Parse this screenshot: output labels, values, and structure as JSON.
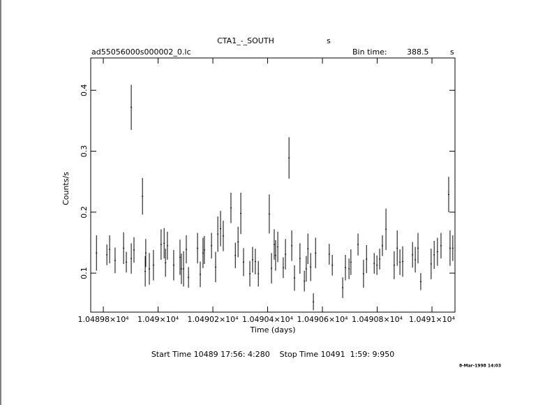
{
  "chart_data": {
    "type": "errorbar",
    "title": "CTA1_-_SOUTH",
    "title_unit": "s",
    "file_name": "ad55056000s000002_0.lc",
    "bin_time_label": "Bin time:",
    "bin_time": 388.5,
    "bin_time_unit": "s",
    "ylabel": "Counts/s",
    "xlabel": "Time (days)",
    "time_range": "Start Time 10489 17:56: 4:280    Stop Time 10491  1:59: 9:950",
    "date": "8-Mar-1998 14:03",
    "color": "#000000",
    "x": [
      10489.775,
      10489.813,
      10489.823,
      10489.843,
      10489.874,
      10489.884,
      10489.902,
      10489.902,
      10489.912,
      10489.943,
      10489.953,
      10489.955,
      10489.968,
      10489.983,
      10490.011,
      10490.022,
      10490.027,
      10490.034,
      10490.057,
      10490.08,
      10490.085,
      10490.093,
      10490.103,
      10490.111,
      10490.144,
      10490.154,
      10490.164,
      10490.169,
      10490.195,
      10490.21,
      10490.218,
      10490.228,
      10490.238,
      10490.266,
      10490.282,
      10490.292,
      10490.302,
      10490.312,
      10490.335,
      10490.345,
      10490.355,
      10490.366,
      10490.406,
      10490.414,
      10490.424,
      10490.429,
      10490.437,
      10490.457,
      10490.465,
      10490.478,
      10490.488,
      10490.498,
      10490.518,
      10490.534,
      10490.541,
      10490.547,
      10490.557,
      10490.567,
      10490.575,
      10490.625,
      10490.636,
      10490.674,
      10490.684,
      10490.697,
      10490.704,
      10490.73,
      10490.75,
      10490.761,
      10490.789,
      10490.799,
      10490.809,
      10490.819,
      10490.832,
      10490.862,
      10490.873,
      10490.883,
      10490.893,
      10490.929,
      10490.939,
      10490.949,
      10490.959,
      10490.997,
      10491.008,
      10491.02,
      10491.033,
      10491.061,
      10491.066,
      10491.076
    ],
    "values": [
      0.133,
      0.13,
      0.139,
      0.121,
      0.141,
      0.118,
      0.372,
      0.124,
      0.138,
      0.226,
      0.103,
      0.133,
      0.107,
      0.113,
      0.147,
      0.149,
      0.117,
      0.145,
      0.113,
      0.126,
      0.107,
      0.107,
      0.139,
      0.093,
      0.141,
      0.098,
      0.133,
      0.138,
      0.145,
      0.11,
      0.164,
      0.173,
      0.161,
      0.207,
      0.129,
      0.151,
      0.198,
      0.118,
      0.099,
      0.122,
      0.119,
      0.099,
      0.197,
      0.108,
      0.147,
      0.129,
      0.143,
      0.109,
      0.131,
      0.289,
      0.145,
      0.092,
      0.124,
      0.087,
      0.107,
      0.14,
      0.11,
      0.053,
      0.133,
      0.131,
      0.113,
      0.076,
      0.109,
      0.107,
      0.118,
      0.147,
      0.099,
      0.123,
      0.116,
      0.113,
      0.123,
      0.145,
      0.172,
      0.113,
      0.141,
      0.118,
      0.119,
      0.13,
      0.122,
      0.141,
      0.086,
      0.115,
      0.13,
      0.135,
      0.145,
      0.229,
      0.141,
      0.141
    ],
    "errors": [
      0.029,
      0.017,
      0.023,
      0.021,
      0.026,
      0.017,
      0.037,
      0.025,
      0.021,
      0.03,
      0.025,
      0.023,
      0.026,
      0.025,
      0.025,
      0.025,
      0.023,
      0.023,
      0.025,
      0.029,
      0.025,
      0.029,
      0.023,
      0.017,
      0.025,
      0.021,
      0.025,
      0.023,
      0.021,
      0.025,
      0.029,
      0.029,
      0.025,
      0.025,
      0.021,
      0.025,
      0.034,
      0.023,
      0.021,
      0.021,
      0.021,
      0.021,
      0.032,
      0.025,
      0.025,
      0.025,
      0.025,
      0.017,
      0.025,
      0.034,
      0.025,
      0.021,
      0.025,
      0.017,
      0.021,
      0.025,
      0.023,
      0.014,
      0.025,
      0.017,
      0.017,
      0.017,
      0.021,
      0.017,
      0.021,
      0.018,
      0.023,
      0.023,
      0.017,
      0.016,
      0.017,
      0.017,
      0.034,
      0.023,
      0.029,
      0.021,
      0.025,
      0.021,
      0.021,
      0.025,
      0.014,
      0.025,
      0.023,
      0.023,
      0.021,
      0.029,
      0.029,
      0.021
    ],
    "xlim": [
      10489.754,
      10491.084
    ],
    "ylim": [
      0.036,
      0.453
    ],
    "xticks": [
      {
        "value": 10489.8,
        "label": "1.04898×10⁴"
      },
      {
        "value": 10490.0,
        "label": "1.049×10⁴"
      },
      {
        "value": 10490.2,
        "label": "1.04902×10⁴"
      },
      {
        "value": 10490.4,
        "label": "1.04904×10⁴"
      },
      {
        "value": 10490.6,
        "label": "1.04906×10⁴"
      },
      {
        "value": 10490.8,
        "label": "1.04908×10⁴"
      },
      {
        "value": 10491.0,
        "label": "1.0491×10⁴"
      }
    ],
    "yticks": [
      0.1,
      0.2,
      0.3,
      0.4
    ]
  }
}
